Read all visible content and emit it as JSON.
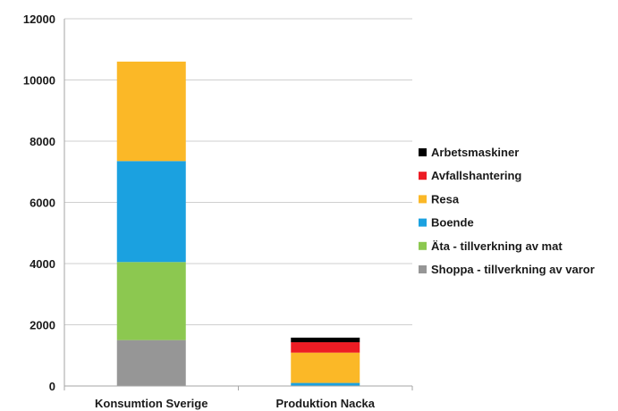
{
  "chart_data": {
    "type": "bar",
    "stacked": true,
    "title": "",
    "xlabel": "",
    "ylabel": "",
    "ylim": [
      0,
      12000
    ],
    "yticks": [
      0,
      2000,
      4000,
      6000,
      8000,
      10000,
      12000
    ],
    "grid": true,
    "legend_position": "right",
    "categories": [
      "Konsumtion Sverige",
      "Produktion Nacka"
    ],
    "series": [
      {
        "name": "Shoppa - tillverkning av varor",
        "color": "#969696",
        "values": [
          1500,
          0
        ]
      },
      {
        "name": "Äta - tillverkning av mat",
        "color": "#8cc850",
        "values": [
          2550,
          0
        ]
      },
      {
        "name": "Boende",
        "color": "#1ba1e0",
        "values": [
          3300,
          100
        ]
      },
      {
        "name": "Resa",
        "color": "#fbb827",
        "values": [
          3250,
          990
        ]
      },
      {
        "name": "Avfallshantering",
        "color": "#ed1c24",
        "values": [
          0,
          340
        ]
      },
      {
        "name": "Arbetsmaskiner",
        "color": "#000000",
        "values": [
          0,
          150
        ]
      }
    ]
  }
}
